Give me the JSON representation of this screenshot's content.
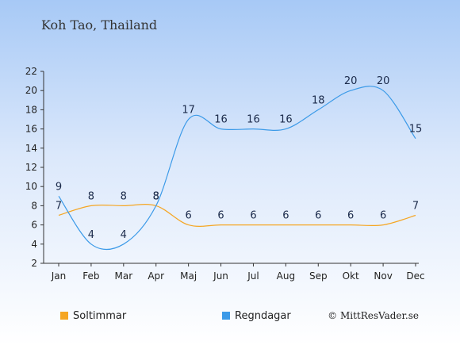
{
  "chart_data": {
    "type": "line",
    "title": "Koh Tao, Thailand",
    "categories": [
      "Jan",
      "Feb",
      "Mar",
      "Apr",
      "Maj",
      "Jun",
      "Jul",
      "Aug",
      "Sep",
      "Okt",
      "Nov",
      "Dec"
    ],
    "series": [
      {
        "name": "Soltimmar",
        "color": "#f5a623",
        "values": [
          7,
          8,
          8,
          8,
          6,
          6,
          6,
          6,
          6,
          6,
          6,
          7
        ]
      },
      {
        "name": "Regndagar",
        "color": "#3b9ae8",
        "values": [
          9,
          4,
          4,
          8,
          17,
          16,
          16,
          16,
          18,
          20,
          20,
          15
        ]
      }
    ],
    "y_ticks": [
      2,
      4,
      6,
      8,
      10,
      12,
      14,
      16,
      18,
      20,
      22
    ],
    "ylim": [
      2,
      22
    ],
    "grid": false,
    "legend_position": "bottom-left"
  },
  "credit": "© MittResVader.se"
}
